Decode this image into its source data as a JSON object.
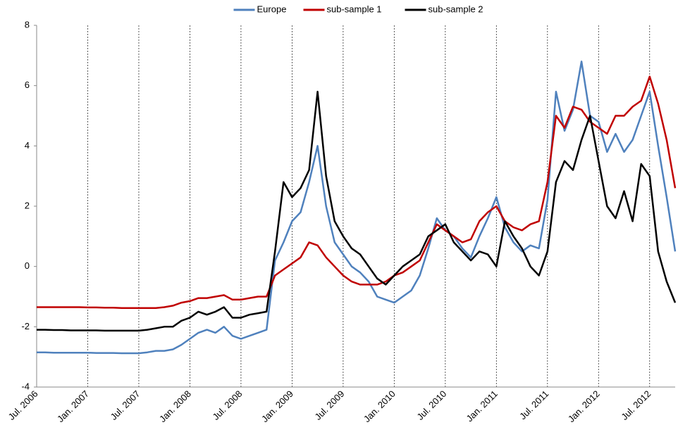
{
  "chart_data": {
    "type": "line",
    "x": [
      "2006-07",
      "2006-08",
      "2006-09",
      "2006-10",
      "2006-11",
      "2006-12",
      "2007-01",
      "2007-02",
      "2007-03",
      "2007-04",
      "2007-05",
      "2007-06",
      "2007-07",
      "2007-08",
      "2007-09",
      "2007-10",
      "2007-11",
      "2007-12",
      "2008-01",
      "2008-02",
      "2008-03",
      "2008-04",
      "2008-05",
      "2008-06",
      "2008-07",
      "2008-08",
      "2008-09",
      "2008-10",
      "2008-11",
      "2008-12",
      "2009-01",
      "2009-02",
      "2009-03",
      "2009-04",
      "2009-05",
      "2009-06",
      "2009-07",
      "2009-08",
      "2009-09",
      "2009-10",
      "2009-11",
      "2009-12",
      "2010-01",
      "2010-02",
      "2010-03",
      "2010-04",
      "2010-05",
      "2010-06",
      "2010-07",
      "2010-08",
      "2010-09",
      "2010-10",
      "2010-11",
      "2010-12",
      "2011-01",
      "2011-02",
      "2011-03",
      "2011-04",
      "2011-05",
      "2011-06",
      "2011-07",
      "2011-08",
      "2011-09",
      "2011-10",
      "2011-11",
      "2011-12",
      "2012-01",
      "2012-02",
      "2012-03",
      "2012-04",
      "2012-05",
      "2012-06",
      "2012-07",
      "2012-08",
      "2012-09",
      "2012-10"
    ],
    "series": [
      {
        "name": "Europe",
        "color": "#4f81bd",
        "values": [
          -2.85,
          -2.85,
          -2.86,
          -2.86,
          -2.86,
          -2.86,
          -2.86,
          -2.87,
          -2.87,
          -2.87,
          -2.88,
          -2.88,
          -2.88,
          -2.85,
          -2.8,
          -2.8,
          -2.75,
          -2.6,
          -2.4,
          -2.2,
          -2.1,
          -2.2,
          -2.0,
          -2.3,
          -2.4,
          -2.3,
          -2.2,
          -2.1,
          0.2,
          0.8,
          1.5,
          1.8,
          2.8,
          4.0,
          2.0,
          0.8,
          0.4,
          0.0,
          -0.2,
          -0.5,
          -1.0,
          -1.1,
          -1.2,
          -1.0,
          -0.8,
          -0.3,
          0.6,
          1.6,
          1.2,
          1.0,
          0.6,
          0.3,
          1.0,
          1.6,
          2.3,
          1.3,
          0.8,
          0.5,
          0.7,
          0.6,
          2.2,
          5.8,
          4.5,
          5.2,
          6.8,
          5.0,
          4.8,
          3.8,
          4.4,
          3.8,
          4.2,
          5.0,
          5.8,
          4.0,
          2.3,
          0.5
        ]
      },
      {
        "name": "sub-sample 1",
        "color": "#c00000",
        "values": [
          -1.35,
          -1.35,
          -1.35,
          -1.35,
          -1.35,
          -1.35,
          -1.36,
          -1.36,
          -1.37,
          -1.37,
          -1.38,
          -1.38,
          -1.38,
          -1.38,
          -1.38,
          -1.35,
          -1.3,
          -1.2,
          -1.15,
          -1.05,
          -1.05,
          -1.0,
          -0.95,
          -1.1,
          -1.1,
          -1.05,
          -1.0,
          -1.0,
          -0.3,
          -0.1,
          0.1,
          0.3,
          0.8,
          0.7,
          0.3,
          0.0,
          -0.3,
          -0.5,
          -0.6,
          -0.6,
          -0.6,
          -0.5,
          -0.3,
          -0.2,
          0.0,
          0.2,
          0.8,
          1.4,
          1.2,
          1.0,
          0.8,
          0.9,
          1.5,
          1.8,
          2.0,
          1.5,
          1.3,
          1.2,
          1.4,
          1.5,
          2.8,
          5.0,
          4.6,
          5.3,
          5.2,
          4.8,
          4.6,
          4.4,
          5.0,
          5.0,
          5.3,
          5.5,
          6.3,
          5.4,
          4.2,
          2.6
        ]
      },
      {
        "name": "sub-sample 2",
        "color": "#000000",
        "values": [
          -2.1,
          -2.1,
          -2.11,
          -2.11,
          -2.12,
          -2.12,
          -2.12,
          -2.12,
          -2.13,
          -2.13,
          -2.13,
          -2.13,
          -2.13,
          -2.1,
          -2.05,
          -2.0,
          -2.0,
          -1.8,
          -1.7,
          -1.5,
          -1.6,
          -1.5,
          -1.35,
          -1.7,
          -1.7,
          -1.6,
          -1.55,
          -1.5,
          0.5,
          2.8,
          2.3,
          2.6,
          3.2,
          5.8,
          3.0,
          1.5,
          1.0,
          0.6,
          0.4,
          0.0,
          -0.4,
          -0.6,
          -0.3,
          0.0,
          0.2,
          0.4,
          1.0,
          1.2,
          1.4,
          0.8,
          0.5,
          0.2,
          0.5,
          0.4,
          0.0,
          1.5,
          1.0,
          0.6,
          0.0,
          -0.3,
          0.5,
          2.8,
          3.5,
          3.2,
          4.2,
          5.0,
          3.5,
          2.0,
          1.6,
          2.5,
          1.5,
          3.4,
          3.0,
          0.5,
          -0.5,
          -1.2
        ]
      }
    ],
    "xlim": [
      "2006-07",
      "2012-10"
    ],
    "xticks": [
      {
        "value": "2006-07",
        "label": "Jul. 2006"
      },
      {
        "value": "2007-01",
        "label": "Jan. 2007"
      },
      {
        "value": "2007-07",
        "label": "Jul. 2007"
      },
      {
        "value": "2008-01",
        "label": "Jan. 2008"
      },
      {
        "value": "2008-07",
        "label": "Jul. 2008"
      },
      {
        "value": "2009-01",
        "label": "Jan. 2009"
      },
      {
        "value": "2009-07",
        "label": "Jul. 2009"
      },
      {
        "value": "2010-01",
        "label": "Jan. 2010"
      },
      {
        "value": "2010-07",
        "label": "Jul. 2010"
      },
      {
        "value": "2011-01",
        "label": "Jan. 2011"
      },
      {
        "value": "2011-07",
        "label": "Jul. 2011"
      },
      {
        "value": "2012-01",
        "label": "Jan. 2012"
      },
      {
        "value": "2012-07",
        "label": "Jul. 2012"
      }
    ],
    "ylim": [
      -4,
      8
    ],
    "yticks": [
      -4,
      -2,
      0,
      2,
      4,
      6,
      8
    ],
    "grid": true,
    "legend": "top"
  }
}
